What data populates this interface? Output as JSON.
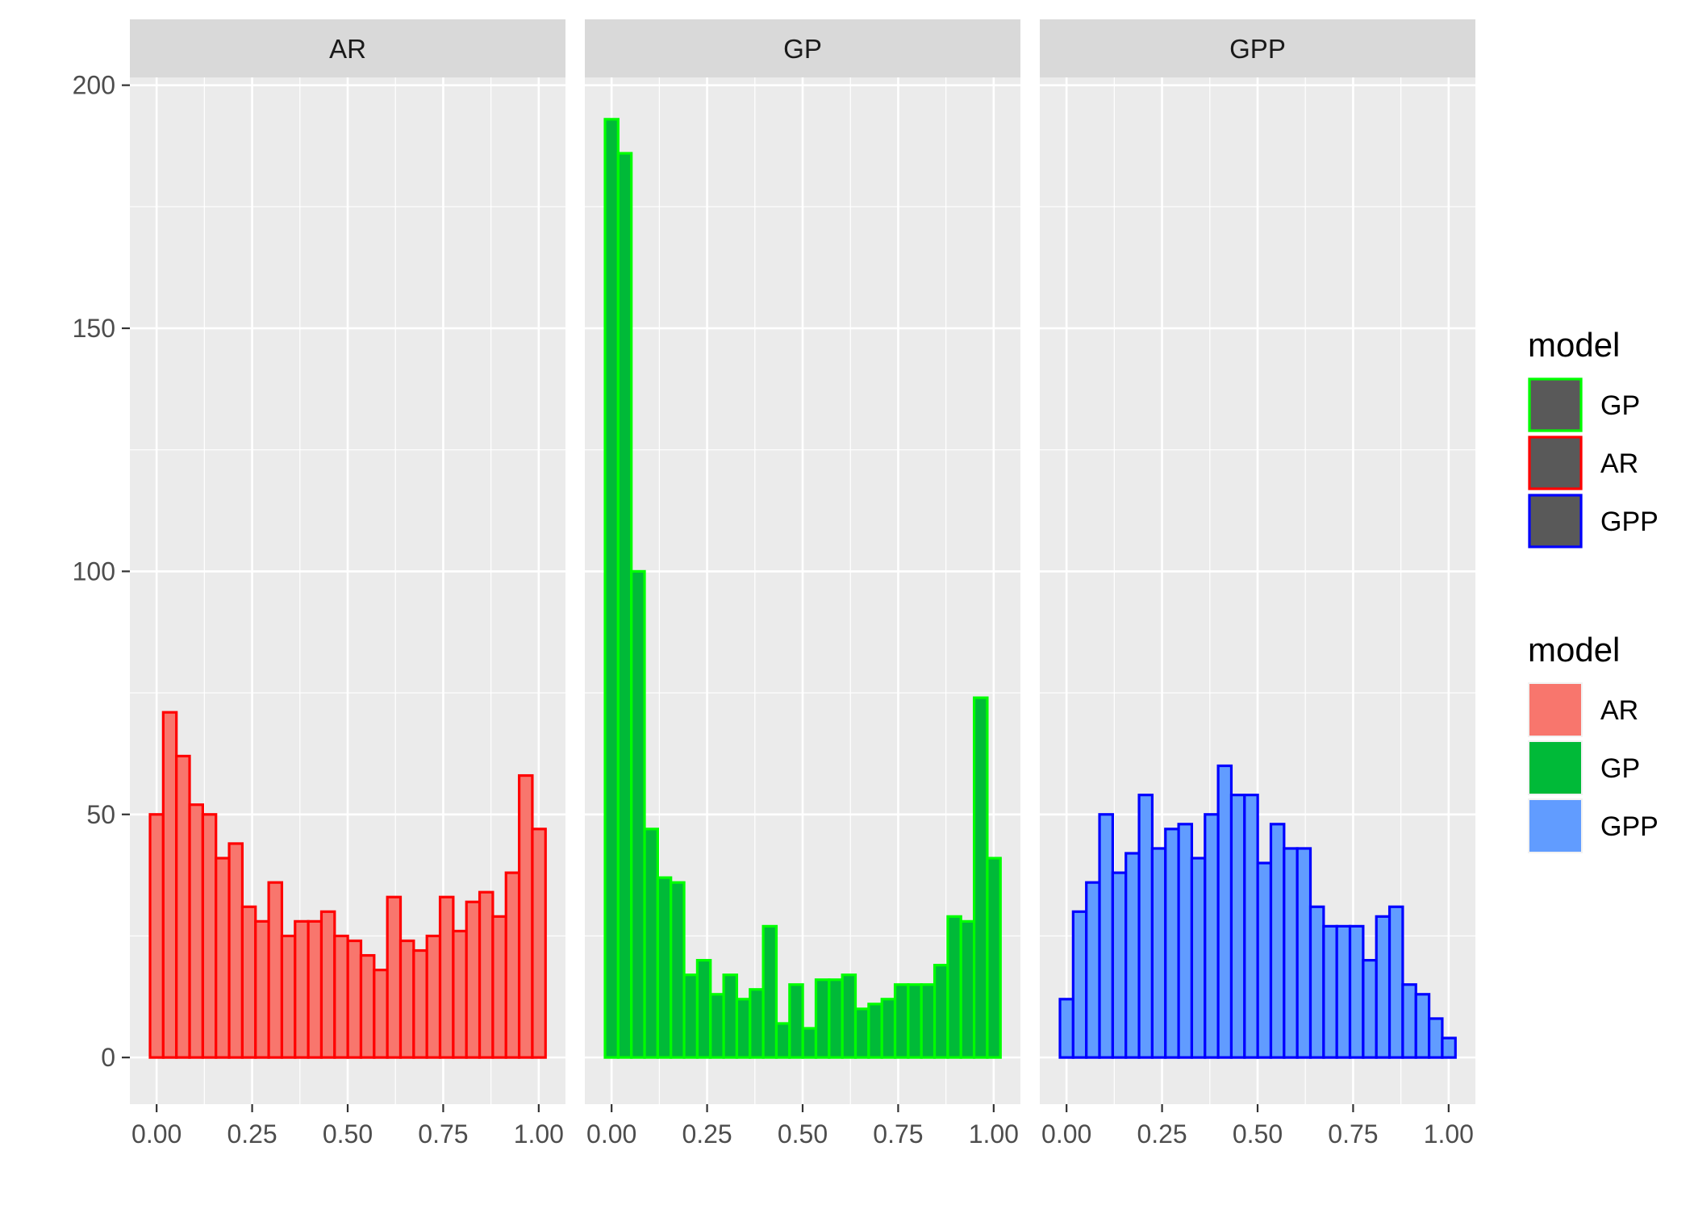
{
  "chart_data": {
    "type": "histogram",
    "facet_by": "model",
    "xlim": [
      -0.07,
      1.07
    ],
    "ylim": [
      -9.6,
      201.6
    ],
    "x_ticks": [
      0,
      0.25,
      0.5,
      0.75,
      1
    ],
    "x_tick_labels": [
      "0.00",
      "0.25",
      "0.50",
      "0.75",
      "1.00"
    ],
    "y_ticks": [
      0,
      50,
      100,
      150,
      200
    ],
    "y_tick_labels": [
      "0",
      "50",
      "100",
      "150",
      "200"
    ],
    "grid": true,
    "bins": {
      "count": 30,
      "start": -0.0172,
      "width": 0.0345
    },
    "panels": [
      {
        "label": "AR",
        "outline": "#ff0000",
        "fill": "#f8766d",
        "values": [
          50,
          71,
          62,
          52,
          50,
          41,
          44,
          31,
          28,
          36,
          25,
          28,
          28,
          30,
          25,
          24,
          21,
          18,
          33,
          24,
          22,
          25,
          33,
          26,
          32,
          34,
          29,
          38,
          58,
          47
        ]
      },
      {
        "label": "GP",
        "outline": "#00ff00",
        "fill": "#00ba38",
        "values": [
          193,
          186,
          100,
          47,
          37,
          36,
          17,
          20,
          13,
          17,
          12,
          14,
          27,
          7,
          15,
          6,
          16,
          16,
          17,
          10,
          11,
          12,
          15,
          15,
          15,
          19,
          29,
          28,
          74,
          41
        ]
      },
      {
        "label": "GPP",
        "outline": "#0000ff",
        "fill": "#619cff",
        "values": [
          12,
          30,
          36,
          50,
          38,
          42,
          54,
          43,
          47,
          48,
          41,
          50,
          60,
          54,
          54,
          40,
          48,
          43,
          43,
          31,
          27,
          27,
          27,
          20,
          29,
          31,
          15,
          13,
          8,
          4
        ]
      }
    ],
    "legends": [
      {
        "title": "model",
        "aesthetic": "colour",
        "placement": "right",
        "key_fill": "#595959",
        "entries": [
          {
            "label": "GP",
            "color": "#00ff00"
          },
          {
            "label": "AR",
            "color": "#ff0000"
          },
          {
            "label": "GPP",
            "color": "#0000ff"
          }
        ]
      },
      {
        "title": "model",
        "aesthetic": "fill",
        "placement": "right",
        "entries": [
          {
            "label": "AR",
            "color": "#f8766d"
          },
          {
            "label": "GP",
            "color": "#00ba38"
          },
          {
            "label": "GPP",
            "color": "#619cff"
          }
        ]
      }
    ]
  }
}
